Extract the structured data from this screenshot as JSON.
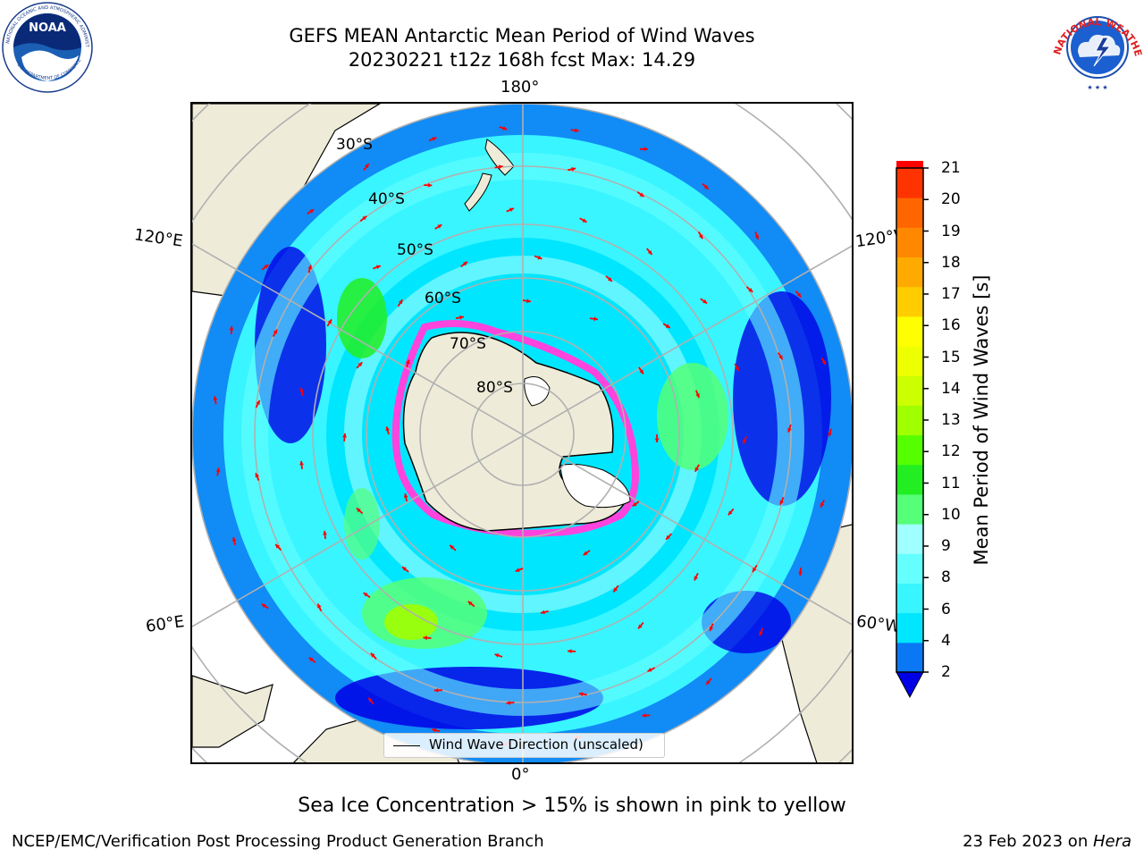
{
  "title": {
    "line1": "GEFS MEAN Antarctic Mean Period of Wind Waves",
    "line2": "20230221 t12z 168h fcst   Max: 14.29"
  },
  "logos": {
    "left": "noaa-logo",
    "right": "national-weather-service-logo"
  },
  "map": {
    "projection": "south-polar-stereographic",
    "longitude_labels": {
      "top": "180°",
      "bottom": "0°",
      "left_upper": "120°E",
      "left_lower": "60°E",
      "right_upper": "120°W",
      "right_lower": "60°W"
    },
    "latitude_labels": [
      "30°S",
      "40°S",
      "50°S",
      "60°S",
      "70°S",
      "80°S"
    ],
    "legend": "Wind Wave Direction (unscaled)",
    "colors": {
      "land": "#eeecd9",
      "grid": "#b0b0b0",
      "arrow": "#ff0000",
      "sea_ice": "#ff44dd"
    }
  },
  "colorbar": {
    "label": "Mean Period of Wind Waves [s]",
    "ticks": [
      "21",
      "20",
      "19",
      "18",
      "17",
      "16",
      "15",
      "14",
      "13",
      "12",
      "11",
      "10",
      "9",
      "8",
      "6",
      "4",
      "2"
    ],
    "colors": [
      "#0000e6",
      "#0a78f5",
      "#00e6ff",
      "#39f5ff",
      "#66ffff",
      "#a0ffff",
      "#55ff77",
      "#22ee22",
      "#55ff00",
      "#a0ff00",
      "#ccff00",
      "#eeff00",
      "#ffff00",
      "#ffcc00",
      "#ffaa00",
      "#ff8800",
      "#ff6600",
      "#ff3300",
      "#ff0000"
    ],
    "extend": "min"
  },
  "caption": "Sea Ice Concentration > 15% is shown in pink to yellow",
  "footer": {
    "left": "NCEP/EMC/Verification Post Processing Product Generation Branch",
    "right_date": "23 Feb 2023 on ",
    "right_machine": "Hera"
  }
}
